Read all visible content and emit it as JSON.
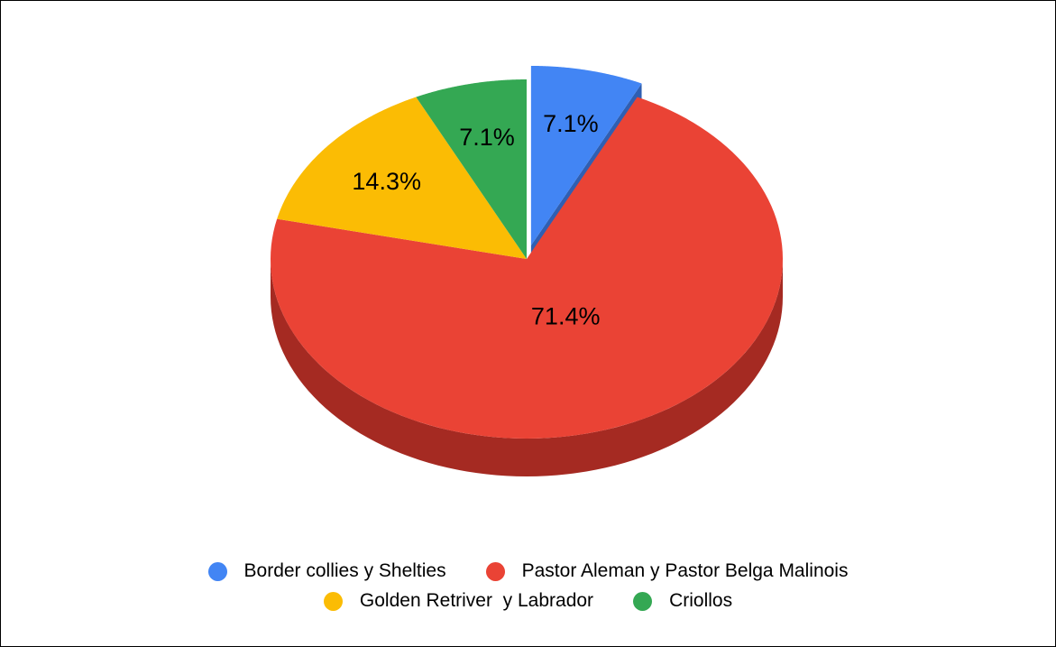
{
  "chart_data": {
    "type": "pie",
    "title": "",
    "three_d": true,
    "legend_position": "bottom",
    "slices": [
      {
        "name": "Border collies y Shelties",
        "value": 7.1,
        "label": "7.1%",
        "color": "#4285F4",
        "side_color": "#2F5FB3",
        "exploded": true
      },
      {
        "name": "Pastor Aleman y Pastor Belga Malinois",
        "value": 71.4,
        "label": "71.4%",
        "color": "#EA4335",
        "side_color": "#A52A22",
        "exploded": false
      },
      {
        "name": "Golden Retriver  y Labrador",
        "value": 14.3,
        "label": "14.3%",
        "color": "#FBBC04",
        "side_color": "#B08400",
        "exploded": false
      },
      {
        "name": "Criollos",
        "value": 7.1,
        "label": "7.1%",
        "color": "#34A853",
        "side_color": "#23753A",
        "exploded": false
      }
    ]
  }
}
